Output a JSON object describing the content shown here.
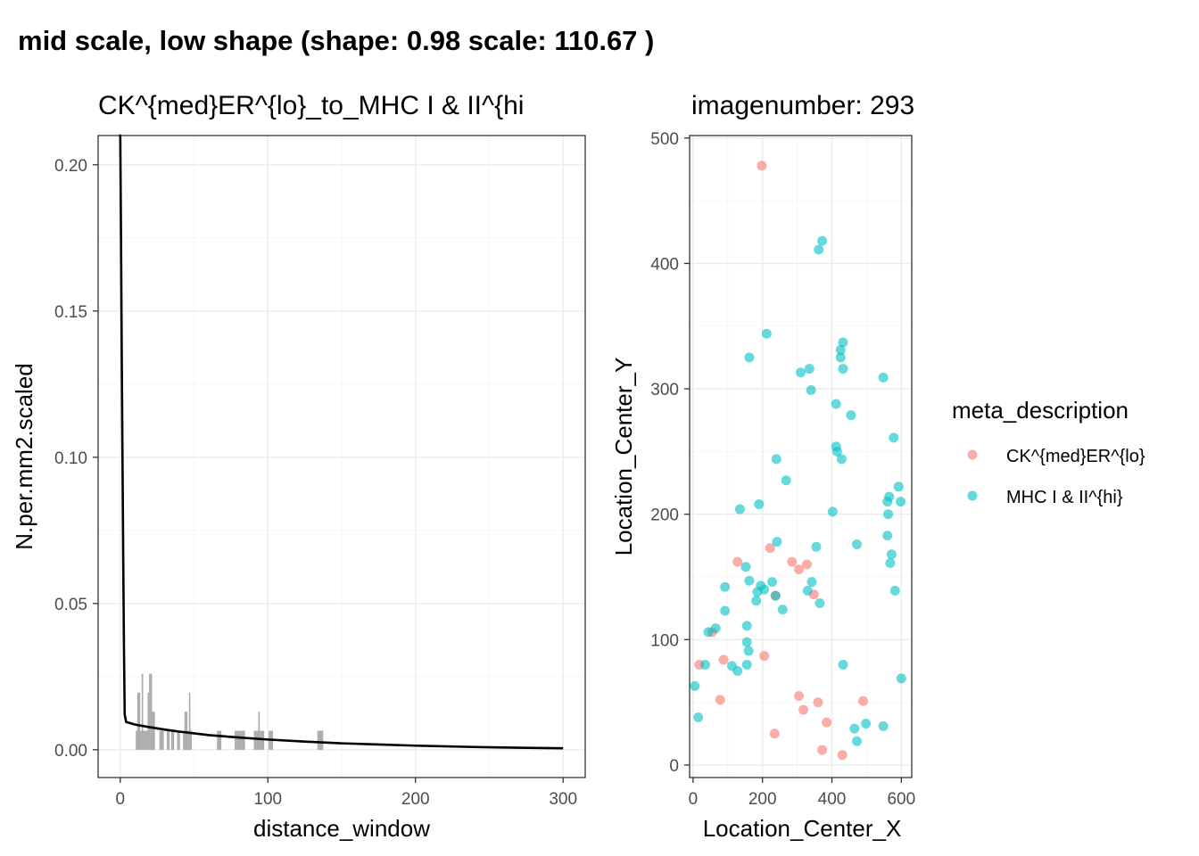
{
  "title": "mid scale, low shape (shape: 0.98 scale: 110.67 )",
  "colors": {
    "group1": "#F8766D",
    "group2": "#00BFC4",
    "bars": "#7f7f7f",
    "curve": "#000000"
  },
  "chart_data": [
    {
      "type": "bar",
      "title": "CK^{med}ER^{lo}_to_MHC I & II^{hi",
      "xlabel": "distance_window",
      "ylabel": "N.per.mm2.scaled",
      "xlim": [
        -15,
        315
      ],
      "ylim": [
        -0.0095,
        0.21
      ],
      "x_ticks": [
        0,
        100,
        200,
        300
      ],
      "x_tick_labels": [
        "0",
        "100",
        "200",
        "300"
      ],
      "y_ticks": [
        0,
        0.05,
        0.1,
        0.15,
        0.2
      ],
      "y_tick_labels": [
        "0.00",
        "0.05",
        "0.10",
        "0.15",
        "0.20"
      ],
      "grid": true,
      "bar_width": 1,
      "bars": [
        {
          "x": 11,
          "y": 0.0065
        },
        {
          "x": 12,
          "y": 0.0195
        },
        {
          "x": 13,
          "y": 0.0195
        },
        {
          "x": 14,
          "y": 0.0065
        },
        {
          "x": 15,
          "y": 0.026
        },
        {
          "x": 16,
          "y": 0.0065
        },
        {
          "x": 17,
          "y": 0.0065
        },
        {
          "x": 18,
          "y": 0.0065
        },
        {
          "x": 19,
          "y": 0.0195
        },
        {
          "x": 20,
          "y": 0.026
        },
        {
          "x": 21,
          "y": 0.026
        },
        {
          "x": 22,
          "y": 0.013
        },
        {
          "x": 23,
          "y": 0.013
        },
        {
          "x": 27,
          "y": 0.0065
        },
        {
          "x": 28,
          "y": 0.0065
        },
        {
          "x": 29,
          "y": 0.0065
        },
        {
          "x": 32,
          "y": 0.0065
        },
        {
          "x": 33,
          "y": 0.0065
        },
        {
          "x": 35,
          "y": 0.0065
        },
        {
          "x": 36,
          "y": 0.0065
        },
        {
          "x": 39,
          "y": 0.0065
        },
        {
          "x": 40,
          "y": 0.0065
        },
        {
          "x": 43,
          "y": 0.0065
        },
        {
          "x": 44,
          "y": 0.013
        },
        {
          "x": 45,
          "y": 0.013
        },
        {
          "x": 46,
          "y": 0.0065
        },
        {
          "x": 47,
          "y": 0.0195
        },
        {
          "x": 48,
          "y": 0.0065
        },
        {
          "x": 66,
          "y": 0.0065
        },
        {
          "x": 67,
          "y": 0.0065
        },
        {
          "x": 68,
          "y": 0.0065
        },
        {
          "x": 78,
          "y": 0.0065
        },
        {
          "x": 79,
          "y": 0.0065
        },
        {
          "x": 80,
          "y": 0.0065
        },
        {
          "x": 81,
          "y": 0.0065
        },
        {
          "x": 82,
          "y": 0.0065
        },
        {
          "x": 83,
          "y": 0.0065
        },
        {
          "x": 84,
          "y": 0.0065
        },
        {
          "x": 91,
          "y": 0.0065
        },
        {
          "x": 92,
          "y": 0.0065
        },
        {
          "x": 93,
          "y": 0.0065
        },
        {
          "x": 94,
          "y": 0.013
        },
        {
          "x": 95,
          "y": 0.0065
        },
        {
          "x": 96,
          "y": 0.0065
        },
        {
          "x": 97,
          "y": 0.0065
        },
        {
          "x": 101,
          "y": 0.0065
        },
        {
          "x": 102,
          "y": 0.0065
        },
        {
          "x": 103,
          "y": 0.0065
        },
        {
          "x": 134,
          "y": 0.0065
        },
        {
          "x": 135,
          "y": 0.0065
        },
        {
          "x": 136,
          "y": 0.0065
        },
        {
          "x": 137,
          "y": 0.0065
        }
      ],
      "curve": [
        {
          "x": -1,
          "y": 0.25
        },
        {
          "x": 0,
          "y": 0.21
        },
        {
          "x": 0.5,
          "y": 0.175
        },
        {
          "x": 1,
          "y": 0.135
        },
        {
          "x": 1.5,
          "y": 0.1
        },
        {
          "x": 2,
          "y": 0.065
        },
        {
          "x": 2.5,
          "y": 0.035
        },
        {
          "x": 3,
          "y": 0.012
        },
        {
          "x": 4,
          "y": 0.0095
        },
        {
          "x": 10,
          "y": 0.0086
        },
        {
          "x": 20,
          "y": 0.0077
        },
        {
          "x": 30,
          "y": 0.0069
        },
        {
          "x": 40,
          "y": 0.0062
        },
        {
          "x": 50,
          "y": 0.0056
        },
        {
          "x": 60,
          "y": 0.005
        },
        {
          "x": 80,
          "y": 0.0042
        },
        {
          "x": 100,
          "y": 0.0035
        },
        {
          "x": 125,
          "y": 0.0028
        },
        {
          "x": 150,
          "y": 0.0022
        },
        {
          "x": 175,
          "y": 0.0018
        },
        {
          "x": 200,
          "y": 0.0014
        },
        {
          "x": 225,
          "y": 0.0011
        },
        {
          "x": 250,
          "y": 0.00085
        },
        {
          "x": 275,
          "y": 0.00065
        },
        {
          "x": 300,
          "y": 0.0005
        }
      ]
    },
    {
      "type": "scatter",
      "title": "imagenumber:  293",
      "xlabel": "Location_Center_X",
      "ylabel": "Location_Center_Y",
      "xlim": [
        -10,
        630
      ],
      "ylim": [
        -10,
        502
      ],
      "x_ticks": [
        0,
        200,
        400,
        600
      ],
      "x_tick_labels": [
        "0",
        "200",
        "400",
        "600"
      ],
      "y_ticks": [
        0,
        100,
        200,
        300,
        400,
        500
      ],
      "y_tick_labels": [
        "0",
        "100",
        "200",
        "300",
        "400",
        "500"
      ],
      "grid": true,
      "legend_title": "meta_description",
      "legend_position": "right",
      "series": [
        {
          "name": "CK^{med}ER^{lo}",
          "color": "#F8766D",
          "points": [
            [
              198,
              478
            ],
            [
              18,
              80
            ],
            [
              55,
              106
            ],
            [
              88,
              84
            ],
            [
              78,
              52
            ],
            [
              128,
              162
            ],
            [
              205,
              87
            ],
            [
              222,
              173
            ],
            [
              237,
              135
            ],
            [
              285,
              162
            ],
            [
              305,
              156
            ],
            [
              328,
              160
            ],
            [
              348,
              136
            ],
            [
              305,
              55
            ],
            [
              318,
              44
            ],
            [
              360,
              50
            ],
            [
              385,
              34
            ],
            [
              235,
              25
            ],
            [
              372,
              12
            ],
            [
              430,
              8
            ],
            [
              490,
              51
            ]
          ]
        },
        {
          "name": "MHC I & II^{hi}",
          "color": "#00BFC4",
          "points": [
            [
              372,
              418
            ],
            [
              362,
              411
            ],
            [
              212,
              344
            ],
            [
              162,
              325
            ],
            [
              432,
              337
            ],
            [
              425,
              331
            ],
            [
              425,
              325
            ],
            [
              335,
              316
            ],
            [
              432,
              316
            ],
            [
              310,
              313
            ],
            [
              548,
              309
            ],
            [
              340,
              299
            ],
            [
              412,
              288
            ],
            [
              455,
              279
            ],
            [
              578,
              261
            ],
            [
              412,
              254
            ],
            [
              415,
              250
            ],
            [
              428,
              244
            ],
            [
              240,
              244
            ],
            [
              268,
              227
            ],
            [
              592,
              222
            ],
            [
              565,
              214
            ],
            [
              560,
              210
            ],
            [
              598,
              210
            ],
            [
              190,
              208
            ],
            [
              135,
              204
            ],
            [
              402,
              202
            ],
            [
              562,
              200
            ],
            [
              242,
              178
            ],
            [
              472,
              176
            ],
            [
              560,
              183
            ],
            [
              355,
              174
            ],
            [
              572,
              168
            ],
            [
              568,
              161
            ],
            [
              152,
              158
            ],
            [
              92,
              142
            ],
            [
              162,
              147
            ],
            [
              195,
              143
            ],
            [
              205,
              140
            ],
            [
              185,
              138
            ],
            [
              228,
              146
            ],
            [
              342,
              146
            ],
            [
              238,
              135
            ],
            [
              182,
              131
            ],
            [
              330,
              139
            ],
            [
              365,
              129
            ],
            [
              258,
              124
            ],
            [
              92,
              123
            ],
            [
              155,
              111
            ],
            [
              65,
              109
            ],
            [
              44,
              106
            ],
            [
              155,
              98
            ],
            [
              160,
              91
            ],
            [
              582,
              139
            ],
            [
              112,
              79
            ],
            [
              128,
              75
            ],
            [
              155,
              80
            ],
            [
              432,
              80
            ],
            [
              35,
              80
            ],
            [
              5,
              63
            ],
            [
              15,
              38
            ],
            [
              600,
              69
            ],
            [
              465,
              29
            ],
            [
              498,
              33
            ],
            [
              548,
              31
            ],
            [
              472,
              19
            ]
          ]
        }
      ]
    }
  ]
}
